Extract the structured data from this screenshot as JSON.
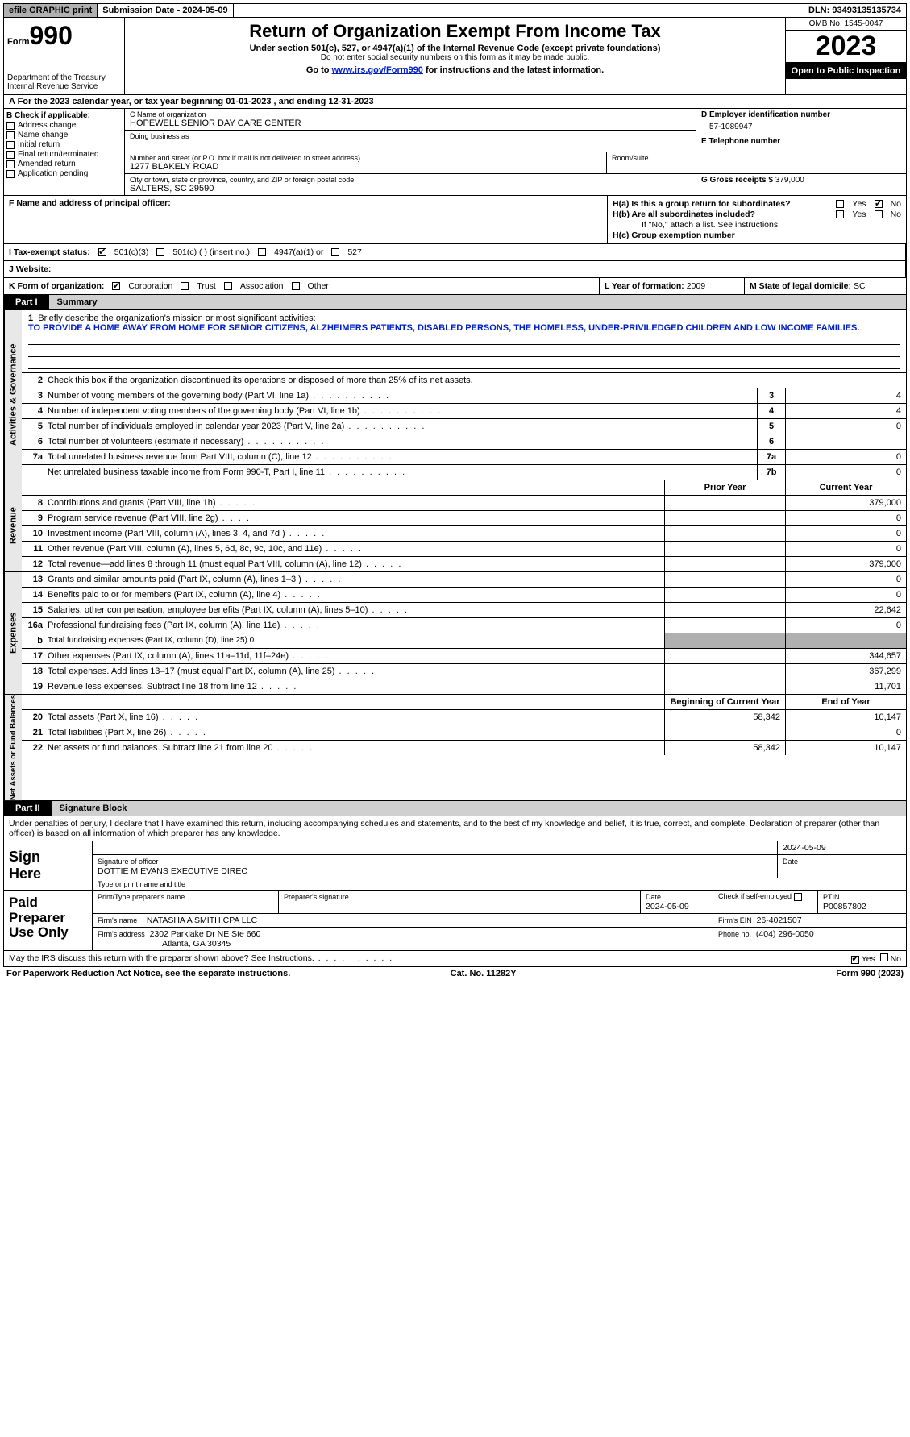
{
  "topbar": {
    "efile": "efile GRAPHIC print",
    "sub_date_label": "Submission Date - 2024-05-09",
    "dln": "DLN: 93493135135734"
  },
  "header": {
    "form_word": "Form",
    "form_num": "990",
    "dept": "Department of the Treasury\nInternal Revenue Service",
    "main_title": "Return of Organization Exempt From Income Tax",
    "subtitle": "Under section 501(c), 527, or 4947(a)(1) of the Internal Revenue Code (except private foundations)",
    "subnote": "Do not enter social security numbers on this form as it may be made public.",
    "goto_pre": "Go to ",
    "goto_link": "www.irs.gov/Form990",
    "goto_post": " for instructions and the latest information.",
    "omb": "OMB No. 1545-0047",
    "year": "2023",
    "public": "Open to Public Inspection"
  },
  "lineA": "A  For the 2023 calendar year, or tax year beginning 01-01-2023    , and ending 12-31-2023",
  "b": {
    "label": "B Check if applicable:",
    "items": [
      "Address change",
      "Name change",
      "Initial return",
      "Final return/terminated",
      "Amended return",
      "Application pending"
    ]
  },
  "c": {
    "l_name": "C Name of organization",
    "name": "HOPEWELL SENIOR DAY CARE CENTER",
    "dba": "Doing business as",
    "addr_lbl": "Number and street (or P.O. box if mail is not delivered to street address)",
    "addr": "1277 BLAKELY ROAD",
    "room_lbl": "Room/suite",
    "city_lbl": "City or town, state or province, country, and ZIP or foreign postal code",
    "city": "SALTERS, SC  29590"
  },
  "d": {
    "lbl": "D Employer identification number",
    "val": "57-1089947"
  },
  "e": {
    "lbl": "E Telephone number",
    "val": ""
  },
  "g": {
    "lbl": "G Gross receipts $",
    "val": "379,000"
  },
  "f": {
    "lbl": "F  Name and address of principal officer:",
    "val": ""
  },
  "h": {
    "a_lbl": "H(a)  Is this a group return for subordinates?",
    "b_lbl": "H(b)  Are all subordinates included?",
    "b_note": "If \"No,\" attach a list. See instructions.",
    "c_lbl": "H(c)  Group exemption number",
    "yes": "Yes",
    "no": "No"
  },
  "i": {
    "lbl": "I   Tax-exempt status:",
    "o1": "501(c)(3)",
    "o2": "501(c) (  ) (insert no.)",
    "o3": "4947(a)(1) or",
    "o4": "527"
  },
  "j": {
    "lbl": "J   Website:",
    "val": ""
  },
  "k": {
    "lbl": "K Form of organization:",
    "o1": "Corporation",
    "o2": "Trust",
    "o3": "Association",
    "o4": "Other"
  },
  "l": {
    "lbl": "L Year of formation:",
    "val": "2009"
  },
  "m": {
    "lbl": "M State of legal domicile:",
    "val": "SC"
  },
  "part1": {
    "tab": "Part I",
    "title": "Summary"
  },
  "sections": {
    "ag": "Activities & Governance",
    "rev": "Revenue",
    "exp": "Expenses",
    "na": "Net Assets or Fund Balances"
  },
  "q1": {
    "text": "Briefly describe the organization's mission or most significant activities:",
    "mission": "TO PROVIDE A HOME AWAY FROM HOME FOR SENIOR CITIZENS, ALZHEIMERS PATIENTS, DISABLED PERSONS, THE HOMELESS, UNDER-PRIVILEDGED CHILDREN AND LOW INCOME FAMILIES."
  },
  "q2": "Check this box   if the organization discontinued its operations or disposed of more than 25% of its net assets.",
  "rows_gov": [
    {
      "n": "3",
      "d": "Number of voting members of the governing body (Part VI, line 1a)",
      "box": "3",
      "v": "4"
    },
    {
      "n": "4",
      "d": "Number of independent voting members of the governing body (Part VI, line 1b)",
      "box": "4",
      "v": "4"
    },
    {
      "n": "5",
      "d": "Total number of individuals employed in calendar year 2023 (Part V, line 2a)",
      "box": "5",
      "v": "0"
    },
    {
      "n": "6",
      "d": "Total number of volunteers (estimate if necessary)",
      "box": "6",
      "v": ""
    },
    {
      "n": "7a",
      "d": "Total unrelated business revenue from Part VIII, column (C), line 12",
      "box": "7a",
      "v": "0"
    },
    {
      "n": "",
      "d": "Net unrelated business taxable income from Form 990-T, Part I, line 11",
      "box": "7b",
      "v": "0"
    }
  ],
  "hdr_prior": "Prior Year",
  "hdr_curr": "Current Year",
  "rows_rev": [
    {
      "n": "8",
      "d": "Contributions and grants (Part VIII, line 1h)",
      "p": "",
      "c": "379,000"
    },
    {
      "n": "9",
      "d": "Program service revenue (Part VIII, line 2g)",
      "p": "",
      "c": "0"
    },
    {
      "n": "10",
      "d": "Investment income (Part VIII, column (A), lines 3, 4, and 7d )",
      "p": "",
      "c": "0"
    },
    {
      "n": "11",
      "d": "Other revenue (Part VIII, column (A), lines 5, 6d, 8c, 9c, 10c, and 11e)",
      "p": "",
      "c": "0"
    },
    {
      "n": "12",
      "d": "Total revenue—add lines 8 through 11 (must equal Part VIII, column (A), line 12)",
      "p": "",
      "c": "379,000"
    }
  ],
  "rows_exp": [
    {
      "n": "13",
      "d": "Grants and similar amounts paid (Part IX, column (A), lines 1–3 )",
      "p": "",
      "c": "0"
    },
    {
      "n": "14",
      "d": "Benefits paid to or for members (Part IX, column (A), line 4)",
      "p": "",
      "c": "0"
    },
    {
      "n": "15",
      "d": "Salaries, other compensation, employee benefits (Part IX, column (A), lines 5–10)",
      "p": "",
      "c": "22,642"
    },
    {
      "n": "16a",
      "d": "Professional fundraising fees (Part IX, column (A), line 11e)",
      "p": "",
      "c": "0"
    },
    {
      "n": "b",
      "d": "Total fundraising expenses (Part IX, column (D), line 25) 0",
      "shade": true
    },
    {
      "n": "17",
      "d": "Other expenses (Part IX, column (A), lines 11a–11d, 11f–24e)",
      "p": "",
      "c": "344,657"
    },
    {
      "n": "18",
      "d": "Total expenses. Add lines 13–17 (must equal Part IX, column (A), line 25)",
      "p": "",
      "c": "367,299"
    },
    {
      "n": "19",
      "d": "Revenue less expenses. Subtract line 18 from line 12",
      "p": "",
      "c": "11,701"
    }
  ],
  "hdr_beg": "Beginning of Current Year",
  "hdr_end": "End of Year",
  "rows_na": [
    {
      "n": "20",
      "d": "Total assets (Part X, line 16)",
      "p": "58,342",
      "c": "10,147"
    },
    {
      "n": "21",
      "d": "Total liabilities (Part X, line 26)",
      "p": "",
      "c": "0"
    },
    {
      "n": "22",
      "d": "Net assets or fund balances. Subtract line 21 from line 20",
      "p": "58,342",
      "c": "10,147"
    }
  ],
  "part2": {
    "tab": "Part II",
    "title": "Signature Block"
  },
  "perjury": "Under penalties of perjury, I declare that I have examined this return, including accompanying schedules and statements, and to the best of my knowledge and belief, it is true, correct, and complete. Declaration of preparer (other than officer) is based on all information of which preparer has any knowledge.",
  "sign": {
    "label": "Sign\nHere",
    "sig_lbl": "Signature of officer",
    "date_lbl": "Date",
    "date": "2024-05-09",
    "officer": "DOTTIE M EVANS  EXECUTIVE DIREC",
    "type_lbl": "Type or print name and title"
  },
  "prep": {
    "label": "Paid\nPreparer\nUse Only",
    "pname_lbl": "Print/Type preparer's name",
    "psig_lbl": "Preparer's signature",
    "pdate_lbl": "Date",
    "pdate": "2024-05-09",
    "self_lbl": "Check        if self-employed",
    "ptin_lbl": "PTIN",
    "ptin": "P00857802",
    "firm_name_lbl": "Firm's name",
    "firm_name": "NATASHA A SMITH CPA LLC",
    "firm_ein_lbl": "Firm's EIN",
    "firm_ein": "26-4021507",
    "firm_addr_lbl": "Firm's address",
    "firm_addr1": "2302 Parklake Dr NE Ste 660",
    "firm_addr2": "Atlanta, GA  30345",
    "phone_lbl": "Phone no.",
    "phone": "(404) 296-0050"
  },
  "discuss": "May the IRS discuss this return with the preparer shown above? See Instructions.",
  "bottom": {
    "left": "For Paperwork Reduction Act Notice, see the separate instructions.",
    "mid": "Cat. No. 11282Y",
    "right": "Form 990 (2023)"
  }
}
